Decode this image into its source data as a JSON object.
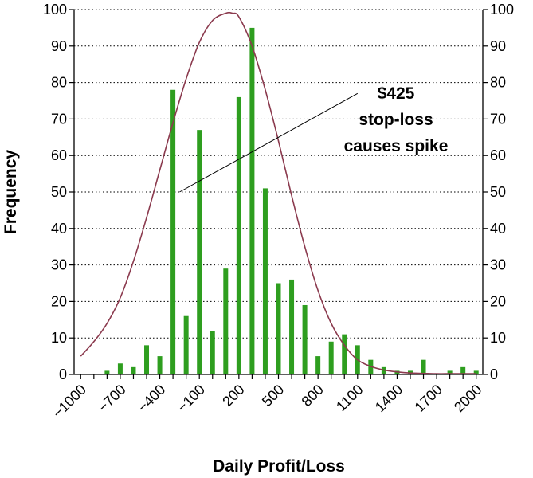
{
  "chart_data": {
    "type": "bar",
    "xlabel": "Daily Profit/Loss",
    "ylabel": "Frequency",
    "x_tick_labels": [
      "−1000",
      "−700",
      "−400",
      "−100",
      "200",
      "500",
      "800",
      "1100",
      "1400",
      "1700",
      "2000"
    ],
    "x_ticks": [
      -1000,
      -700,
      -400,
      -100,
      200,
      500,
      800,
      1100,
      1400,
      1700,
      2000
    ],
    "xlim": [
      -1050,
      2050
    ],
    "ylim": [
      0,
      100
    ],
    "y_ticks": [
      0,
      10,
      20,
      30,
      40,
      50,
      60,
      70,
      80,
      90,
      100
    ],
    "y_tick_labels": [
      "0",
      "10",
      "20",
      "30",
      "40",
      "50",
      "60",
      "70",
      "80",
      "90",
      "100"
    ],
    "grid": "horizontal dotted",
    "bar_color": "#2e9e1f",
    "curve_color": "#8b3a4e",
    "series": [
      {
        "type": "bar",
        "x": [
          -900,
          -800,
          -700,
          -600,
          -500,
          -400,
          -300,
          -200,
          -100,
          0,
          100,
          200,
          300,
          400,
          500,
          600,
          700,
          800,
          900,
          1000,
          1100,
          1200,
          1300,
          1400,
          1500,
          1600,
          1700,
          1800,
          1900,
          2000
        ],
        "values": [
          0,
          1,
          3,
          2,
          8,
          5,
          78,
          16,
          67,
          12,
          29,
          76,
          95,
          51,
          25,
          26,
          19,
          5,
          9,
          11,
          8,
          4,
          2,
          1,
          1,
          4,
          0,
          1,
          2,
          1
        ]
      },
      {
        "type": "line",
        "x": [
          -1000,
          -900,
          -800,
          -700,
          -600,
          -500,
          -400,
          -300,
          -200,
          -100,
          0,
          100,
          150,
          200,
          300,
          400,
          500,
          600,
          700,
          800,
          900,
          1000,
          1100,
          1200,
          1300,
          1400,
          1500,
          1600,
          1700,
          1800,
          1900,
          2000
        ],
        "values": [
          5,
          9,
          14,
          21,
          31,
          43,
          56,
          69,
          81,
          91,
          97,
          99,
          99,
          98,
          90,
          78,
          64,
          49,
          35,
          23,
          14,
          8,
          4,
          2.2,
          1.2,
          0.7,
          0.4,
          0.3,
          0.2,
          0.2,
          0.2,
          0.2
        ]
      }
    ],
    "annotations": [
      {
        "lines": [
          "$425",
          "stop-loss",
          "causes spike"
        ],
        "arrow_from": [
          1100,
          77
        ],
        "arrow_to": [
          -250,
          50
        ]
      }
    ]
  }
}
